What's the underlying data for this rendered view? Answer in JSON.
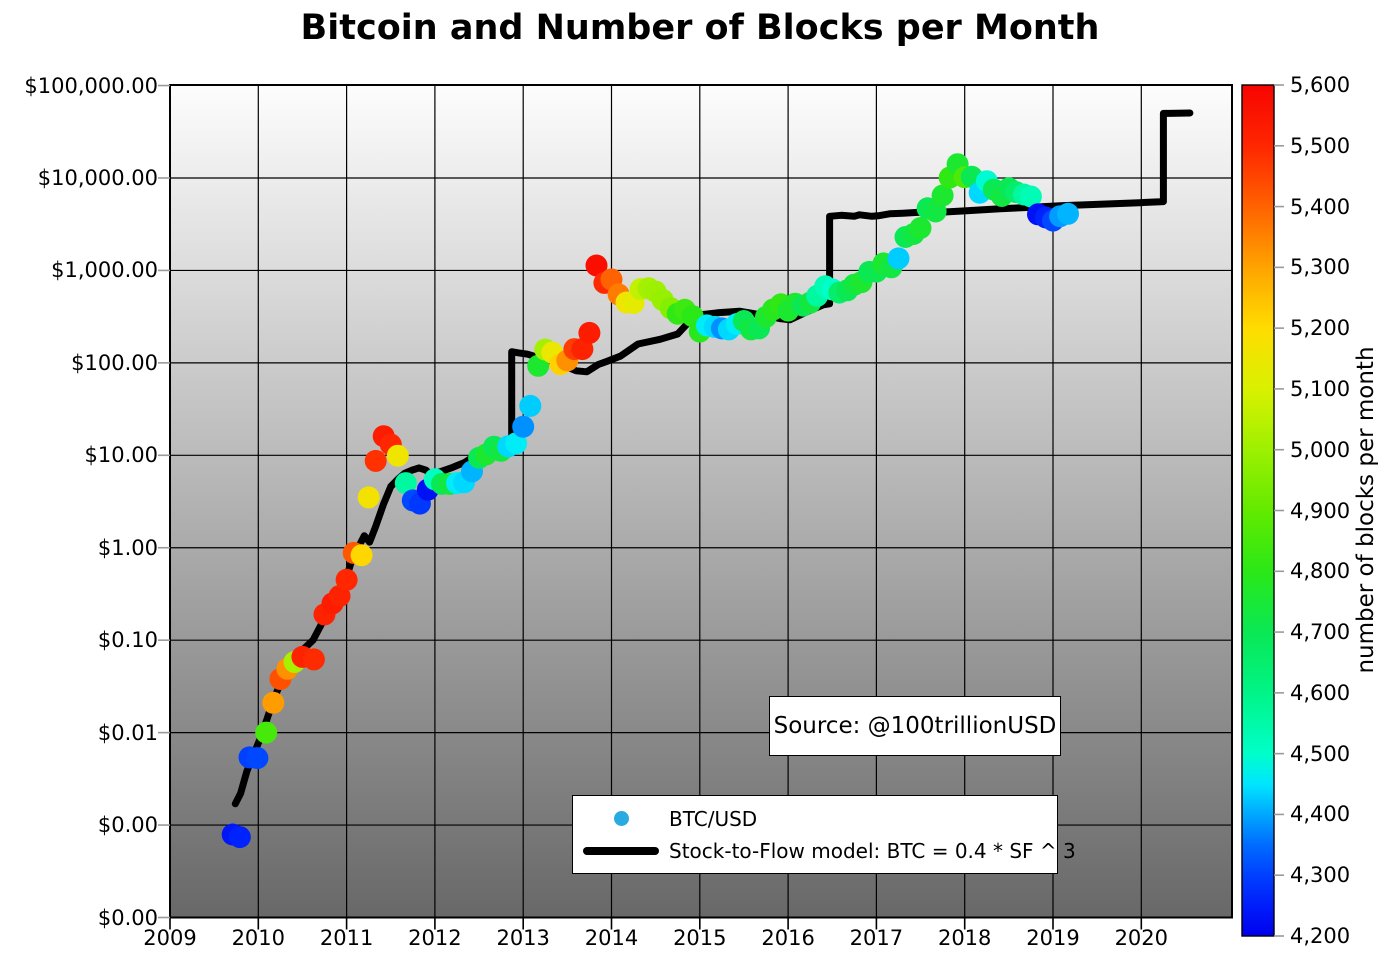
{
  "chart_data": {
    "type": "scatter+line",
    "title": "Bitcoin and Number of Blocks per Month",
    "annotation": "Source: @100trillionUSD",
    "legend": [
      {
        "label": "BTC/USD",
        "marker": "dot",
        "marker_color": "#29abe2"
      },
      {
        "label": "Stock-to-Flow model: BTC = 0.4 * SF ^ 3",
        "marker": "line",
        "marker_color": "#000000"
      }
    ],
    "x_axis": {
      "range": [
        2009,
        2021.03
      ],
      "tick_values": [
        2009,
        2010,
        2011,
        2012,
        2013,
        2014,
        2015,
        2016,
        2017,
        2018,
        2019,
        2020
      ],
      "tick_labels": [
        "2009",
        "2010",
        "2011",
        "2012",
        "2013",
        "2014",
        "2015",
        "2016",
        "2017",
        "2018",
        "2019",
        "2020"
      ]
    },
    "y_axis": {
      "scale": "log",
      "range": [
        0.0001,
        100000
      ],
      "tick_values": [
        100000,
        10000,
        1000,
        100,
        10,
        1,
        0.1,
        0.01,
        0.001,
        0.0001
      ],
      "tick_labels": [
        "$100,000.00",
        "$10,000.00",
        "$1,000.00",
        "$100.00",
        "$10.00",
        "$1.00",
        "$0.10",
        "$0.01",
        "$0.00",
        "$0.00"
      ]
    },
    "colorbar": {
      "label": "number of blocks per month",
      "min": 4200,
      "max": 5600,
      "tick_values": [
        4200,
        4300,
        4400,
        4500,
        4600,
        4700,
        4800,
        4900,
        5000,
        5100,
        5200,
        5300,
        5400,
        5500,
        5600
      ],
      "tick_labels": [
        "4,200",
        "4,300",
        "4,400",
        "4,500",
        "4,600",
        "4,700",
        "4,800",
        "4,900",
        "5,000",
        "5,100",
        "5,200",
        "5,300",
        "5,400",
        "5,500",
        "5,600"
      ],
      "cmap_anchors": [
        [
          0.0,
          "#0000ee"
        ],
        [
          0.05,
          "#0028ff"
        ],
        [
          0.1,
          "#0060ff"
        ],
        [
          0.143,
          "#00a8ff"
        ],
        [
          0.18,
          "#00e8ff"
        ],
        [
          0.215,
          "#00ffc8"
        ],
        [
          0.285,
          "#00f488"
        ],
        [
          0.36,
          "#0ae852"
        ],
        [
          0.43,
          "#2ce816"
        ],
        [
          0.5,
          "#63ea00"
        ],
        [
          0.57,
          "#9cf000"
        ],
        [
          0.64,
          "#d7f200"
        ],
        [
          0.715,
          "#ffdc00"
        ],
        [
          0.785,
          "#ffa400"
        ],
        [
          0.855,
          "#ff6400"
        ],
        [
          0.925,
          "#ff2800"
        ],
        [
          1.0,
          "#f80400"
        ]
      ]
    },
    "style": {
      "plot_bg_top": "#fdfdfd",
      "plot_bg_bottom": "#686868",
      "grid_color": "#000000",
      "line_color": "#000000",
      "line_width": 7,
      "dot_radius": 11
    },
    "series": {
      "btc_usd": {
        "name": "BTC/USD",
        "note": "points are [decimal_year, price_usd, blocks_per_month]",
        "points": [
          [
            2009.71,
            0.00079,
            4240
          ],
          [
            2009.79,
            0.00074,
            4260
          ],
          [
            2009.9,
            0.0054,
            4300
          ],
          [
            2009.99,
            0.0053,
            4310
          ],
          [
            2010.09,
            0.01,
            4850
          ],
          [
            2010.17,
            0.021,
            5310
          ],
          [
            2010.25,
            0.038,
            5430
          ],
          [
            2010.33,
            0.049,
            5330
          ],
          [
            2010.41,
            0.058,
            5020
          ],
          [
            2010.5,
            0.066,
            5510
          ],
          [
            2010.63,
            0.062,
            5490
          ],
          [
            2010.75,
            0.19,
            5510
          ],
          [
            2010.84,
            0.25,
            5530
          ],
          [
            2010.92,
            0.3,
            5510
          ],
          [
            2011.0,
            0.45,
            5500
          ],
          [
            2011.08,
            0.88,
            5420
          ],
          [
            2011.17,
            0.83,
            5210
          ],
          [
            2011.25,
            3.5,
            5170
          ],
          [
            2011.33,
            8.7,
            5480
          ],
          [
            2011.42,
            16.1,
            5530
          ],
          [
            2011.5,
            13.1,
            5500
          ],
          [
            2011.58,
            9.9,
            5160
          ],
          [
            2011.67,
            5.0,
            4560
          ],
          [
            2011.75,
            3.25,
            4310
          ],
          [
            2011.83,
            3.0,
            4290
          ],
          [
            2011.92,
            4.25,
            4230
          ],
          [
            2012.0,
            5.5,
            4510
          ],
          [
            2012.08,
            4.9,
            4700
          ],
          [
            2012.17,
            4.9,
            4730
          ],
          [
            2012.25,
            5.0,
            4460
          ],
          [
            2012.33,
            5.1,
            4440
          ],
          [
            2012.42,
            6.7,
            4410
          ],
          [
            2012.5,
            9.4,
            4700
          ],
          [
            2012.58,
            10.2,
            4760
          ],
          [
            2012.67,
            12.4,
            4700
          ],
          [
            2012.75,
            11.2,
            4730
          ],
          [
            2012.83,
            12.5,
            4440
          ],
          [
            2012.92,
            13.5,
            4460
          ],
          [
            2013.0,
            20.4,
            4380
          ],
          [
            2013.08,
            34.2,
            4430
          ],
          [
            2013.17,
            93,
            4760
          ],
          [
            2013.25,
            139,
            5010
          ],
          [
            2013.33,
            129,
            5150
          ],
          [
            2013.42,
            97,
            5220
          ],
          [
            2013.5,
            106,
            5330
          ],
          [
            2013.58,
            141,
            5460
          ],
          [
            2013.67,
            141,
            5510
          ],
          [
            2013.75,
            211,
            5530
          ],
          [
            2013.83,
            1130,
            5570
          ],
          [
            2013.92,
            732,
            5490
          ],
          [
            2014.0,
            800,
            5400
          ],
          [
            2014.08,
            550,
            5360
          ],
          [
            2014.17,
            450,
            5160
          ],
          [
            2014.25,
            445,
            5130
          ],
          [
            2014.33,
            628,
            5060
          ],
          [
            2014.42,
            640,
            5010
          ],
          [
            2014.5,
            590,
            5000
          ],
          [
            2014.58,
            480,
            4990
          ],
          [
            2014.67,
            390,
            4960
          ],
          [
            2014.75,
            340,
            4810
          ],
          [
            2014.83,
            375,
            4830
          ],
          [
            2014.92,
            320,
            4800
          ],
          [
            2015.0,
            218,
            4790
          ],
          [
            2015.08,
            254,
            4460
          ],
          [
            2015.17,
            245,
            4440
          ],
          [
            2015.25,
            236,
            4380
          ],
          [
            2015.33,
            230,
            4440
          ],
          [
            2015.42,
            263,
            4460
          ],
          [
            2015.5,
            284,
            4700
          ],
          [
            2015.58,
            230,
            4730
          ],
          [
            2015.67,
            236,
            4700
          ],
          [
            2015.75,
            314,
            4760
          ],
          [
            2015.83,
            378,
            4790
          ],
          [
            2015.92,
            430,
            4810
          ],
          [
            2016.0,
            368,
            4760
          ],
          [
            2016.08,
            437,
            4760
          ],
          [
            2016.17,
            416,
            4700
          ],
          [
            2016.25,
            448,
            4730
          ],
          [
            2016.33,
            531,
            4560
          ],
          [
            2016.42,
            673,
            4530
          ],
          [
            2016.5,
            624,
            4500
          ],
          [
            2016.58,
            575,
            4660
          ],
          [
            2016.67,
            610,
            4700
          ],
          [
            2016.75,
            700,
            4730
          ],
          [
            2016.83,
            745,
            4760
          ],
          [
            2016.92,
            964,
            4700
          ],
          [
            2017.0,
            970,
            4710
          ],
          [
            2017.08,
            1190,
            4760
          ],
          [
            2017.17,
            1080,
            4730
          ],
          [
            2017.25,
            1350,
            4430
          ],
          [
            2017.33,
            2300,
            4700
          ],
          [
            2017.42,
            2480,
            4730
          ],
          [
            2017.5,
            2875,
            4760
          ],
          [
            2017.58,
            4700,
            4700
          ],
          [
            2017.67,
            4340,
            4730
          ],
          [
            2017.75,
            6470,
            4760
          ],
          [
            2017.83,
            10100,
            4810
          ],
          [
            2017.92,
            14100,
            4760
          ],
          [
            2018.0,
            10200,
            4860
          ],
          [
            2018.08,
            10300,
            4700
          ],
          [
            2018.17,
            6930,
            4440
          ],
          [
            2018.25,
            9240,
            4490
          ],
          [
            2018.33,
            7490,
            4700
          ],
          [
            2018.42,
            6390,
            4730
          ],
          [
            2018.5,
            7730,
            4700
          ],
          [
            2018.58,
            7030,
            4660
          ],
          [
            2018.67,
            6630,
            4560
          ],
          [
            2018.75,
            6300,
            4530
          ],
          [
            2018.83,
            4050,
            4230
          ],
          [
            2018.92,
            3740,
            4260
          ],
          [
            2019.0,
            3460,
            4310
          ],
          [
            2019.08,
            3860,
            4390
          ],
          [
            2019.17,
            4100,
            4410
          ]
        ]
      },
      "s2f_model": {
        "name": "Stock-to-Flow model: BTC = 0.4 * SF ^ 3",
        "note": "points are [decimal_year, model_price_usd]; vertical jumps at halvings",
        "points": [
          [
            2009.74,
            0.0017
          ],
          [
            2009.8,
            0.0022
          ],
          [
            2009.87,
            0.0038
          ],
          [
            2009.93,
            0.0053
          ],
          [
            2010.04,
            0.0095
          ],
          [
            2010.16,
            0.021
          ],
          [
            2010.27,
            0.038
          ],
          [
            2010.38,
            0.052
          ],
          [
            2010.5,
            0.078
          ],
          [
            2010.62,
            0.1
          ],
          [
            2010.76,
            0.18
          ],
          [
            2010.9,
            0.26
          ],
          [
            2011.0,
            0.48
          ],
          [
            2011.07,
            0.8
          ],
          [
            2011.13,
            1.0
          ],
          [
            2011.2,
            1.35
          ],
          [
            2011.26,
            1.15
          ],
          [
            2011.33,
            1.7
          ],
          [
            2011.42,
            3.0
          ],
          [
            2011.5,
            4.6
          ],
          [
            2011.58,
            5.5
          ],
          [
            2011.66,
            6.4
          ],
          [
            2011.74,
            6.9
          ],
          [
            2011.82,
            7.3
          ],
          [
            2011.9,
            6.9
          ],
          [
            2011.97,
            5.9
          ],
          [
            2012.05,
            6.6
          ],
          [
            2012.2,
            7.4
          ],
          [
            2012.34,
            8.4
          ],
          [
            2012.5,
            10.6
          ],
          [
            2012.62,
            12.2
          ],
          [
            2012.76,
            12.8
          ],
          [
            2012.83,
            11.3
          ],
          [
            2012.87,
            11.3
          ],
          [
            2012.87,
            132
          ],
          [
            2012.95,
            128
          ],
          [
            2013.05,
            124
          ],
          [
            2013.2,
            112
          ],
          [
            2013.42,
            97
          ],
          [
            2013.6,
            82
          ],
          [
            2013.72,
            80
          ],
          [
            2013.85,
            96
          ],
          [
            2013.95,
            104
          ],
          [
            2014.1,
            118
          ],
          [
            2014.3,
            160
          ],
          [
            2014.55,
            180
          ],
          [
            2014.75,
            205
          ],
          [
            2014.85,
            260
          ],
          [
            2014.95,
            310
          ],
          [
            2015.0,
            330
          ],
          [
            2015.2,
            348
          ],
          [
            2015.45,
            362
          ],
          [
            2015.6,
            342
          ],
          [
            2015.75,
            322
          ],
          [
            2015.9,
            302
          ],
          [
            2016.02,
            292
          ],
          [
            2016.2,
            352
          ],
          [
            2016.4,
            425
          ],
          [
            2016.47,
            435
          ],
          [
            2016.47,
            3850
          ],
          [
            2016.6,
            3950
          ],
          [
            2016.75,
            3850
          ],
          [
            2016.81,
            4000
          ],
          [
            2016.95,
            3850
          ],
          [
            2017.02,
            3900
          ],
          [
            2017.15,
            4100
          ],
          [
            2017.3,
            4150
          ],
          [
            2017.49,
            4250
          ],
          [
            2017.6,
            4200
          ],
          [
            2017.72,
            4250
          ],
          [
            2018.0,
            4400
          ],
          [
            2018.4,
            4650
          ],
          [
            2018.74,
            4800
          ],
          [
            2019.08,
            5000
          ],
          [
            2019.53,
            5200
          ],
          [
            2019.98,
            5400
          ],
          [
            2020.25,
            5550
          ],
          [
            2020.25,
            50000
          ],
          [
            2020.32,
            50000
          ],
          [
            2020.55,
            50500
          ]
        ]
      }
    }
  }
}
